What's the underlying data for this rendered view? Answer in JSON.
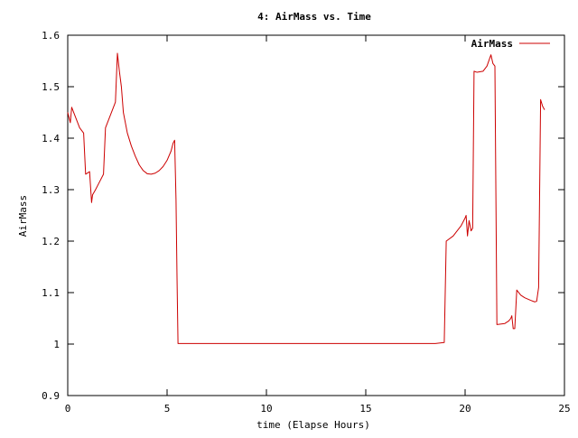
{
  "chart_data": {
    "type": "line",
    "title": "4: AirMass vs. Time",
    "xlabel": "time (Elapse Hours)",
    "ylabel": "AirMass",
    "xlim": [
      0,
      25
    ],
    "ylim": [
      0.9,
      1.6
    ],
    "xticks": [
      0,
      5,
      10,
      15,
      20,
      25
    ],
    "xtick_labels": [
      "0",
      "5",
      "10",
      "15",
      "20",
      "25"
    ],
    "yticks": [
      0.9,
      1.0,
      1.1,
      1.2,
      1.3,
      1.4,
      1.5,
      1.6
    ],
    "ytick_labels": [
      "0.9",
      "1",
      "1.1",
      "1.2",
      "1.3",
      "1.4",
      "1.5",
      "1.6"
    ],
    "grid": false,
    "legend": {
      "position": "top-right",
      "entries": [
        "AirMass"
      ]
    },
    "series": [
      {
        "name": "AirMass",
        "color": "#cc0000",
        "points": [
          [
            0.0,
            1.45
          ],
          [
            0.13,
            1.43
          ],
          [
            0.2,
            1.46
          ],
          [
            0.4,
            1.44
          ],
          [
            0.6,
            1.42
          ],
          [
            0.8,
            1.41
          ],
          [
            0.9,
            1.33
          ],
          [
            1.1,
            1.335
          ],
          [
            1.2,
            1.275
          ],
          [
            1.25,
            1.29
          ],
          [
            1.4,
            1.3
          ],
          [
            1.6,
            1.315
          ],
          [
            1.8,
            1.33
          ],
          [
            1.9,
            1.42
          ],
          [
            2.1,
            1.44
          ],
          [
            2.3,
            1.46
          ],
          [
            2.4,
            1.47
          ],
          [
            2.5,
            1.565
          ],
          [
            2.6,
            1.53
          ],
          [
            2.7,
            1.5
          ],
          [
            2.8,
            1.45
          ],
          [
            3.0,
            1.41
          ],
          [
            3.2,
            1.385
          ],
          [
            3.4,
            1.365
          ],
          [
            3.6,
            1.348
          ],
          [
            3.8,
            1.337
          ],
          [
            4.0,
            1.331
          ],
          [
            4.2,
            1.33
          ],
          [
            4.4,
            1.332
          ],
          [
            4.6,
            1.337
          ],
          [
            4.8,
            1.345
          ],
          [
            5.0,
            1.357
          ],
          [
            5.2,
            1.375
          ],
          [
            5.3,
            1.39
          ],
          [
            5.38,
            1.396
          ],
          [
            5.45,
            1.28
          ],
          [
            5.5,
            1.13
          ],
          [
            5.55,
            1.001
          ],
          [
            6.0,
            1.001
          ],
          [
            8.0,
            1.001
          ],
          [
            10.0,
            1.001
          ],
          [
            12.0,
            1.001
          ],
          [
            14.0,
            1.001
          ],
          [
            16.0,
            1.001
          ],
          [
            18.0,
            1.001
          ],
          [
            18.5,
            1.001
          ],
          [
            18.95,
            1.003
          ],
          [
            19.05,
            1.2
          ],
          [
            19.4,
            1.21
          ],
          [
            19.8,
            1.23
          ],
          [
            20.0,
            1.245
          ],
          [
            20.05,
            1.25
          ],
          [
            20.12,
            1.21
          ],
          [
            20.2,
            1.24
          ],
          [
            20.3,
            1.22
          ],
          [
            20.38,
            1.225
          ],
          [
            20.45,
            1.53
          ],
          [
            20.6,
            1.528
          ],
          [
            20.9,
            1.53
          ],
          [
            21.1,
            1.54
          ],
          [
            21.3,
            1.562
          ],
          [
            21.4,
            1.545
          ],
          [
            21.5,
            1.54
          ],
          [
            21.6,
            1.038
          ],
          [
            22.0,
            1.04
          ],
          [
            22.2,
            1.045
          ],
          [
            22.3,
            1.05
          ],
          [
            22.35,
            1.055
          ],
          [
            22.42,
            1.03
          ],
          [
            22.5,
            1.03
          ],
          [
            22.6,
            1.105
          ],
          [
            22.8,
            1.095
          ],
          [
            23.0,
            1.09
          ],
          [
            23.3,
            1.085
          ],
          [
            23.5,
            1.082
          ],
          [
            23.6,
            1.083
          ],
          [
            23.7,
            1.11
          ],
          [
            23.8,
            1.475
          ],
          [
            23.9,
            1.462
          ],
          [
            24.0,
            1.455
          ]
        ]
      }
    ]
  }
}
